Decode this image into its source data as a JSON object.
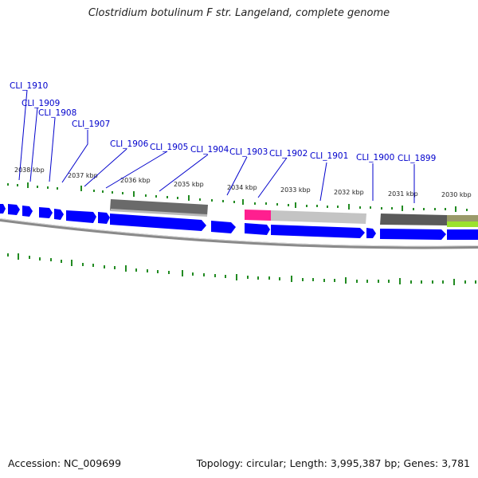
{
  "title": "Clostridium botulinum F str. Langeland, complete genome",
  "footer": {
    "accession": "Accession: NC_009699",
    "summary": "Topology: circular; Length: 3,995,387 bp; Genes: 3,781"
  },
  "colors": {
    "gene_blue": "#0000ff",
    "label_blue": "#0000cc",
    "tick_green": "#228b22",
    "backbone_gray": "#8a8a8a",
    "dark_gray": "#6a6a6a",
    "light_gray": "#c4c4c4",
    "magenta": "#ff1f8f",
    "lime": "#9be22e"
  },
  "kbp_labels": [
    "2038 kbp",
    "2037 kbp",
    "2036 kbp",
    "2035 kbp",
    "2034 kbp",
    "2033 kbp",
    "2032 kbp",
    "2031 kbp",
    "2030 kbp"
  ],
  "gene_labels": [
    "CLI_1910",
    "CLI_1909",
    "CLI_1908",
    "CLI_1907",
    "CLI_1906",
    "CLI_1905",
    "CLI_1904",
    "CLI_1903",
    "CLI_1902",
    "CLI_1901",
    "CLI_1900",
    "CLI_1899"
  ]
}
